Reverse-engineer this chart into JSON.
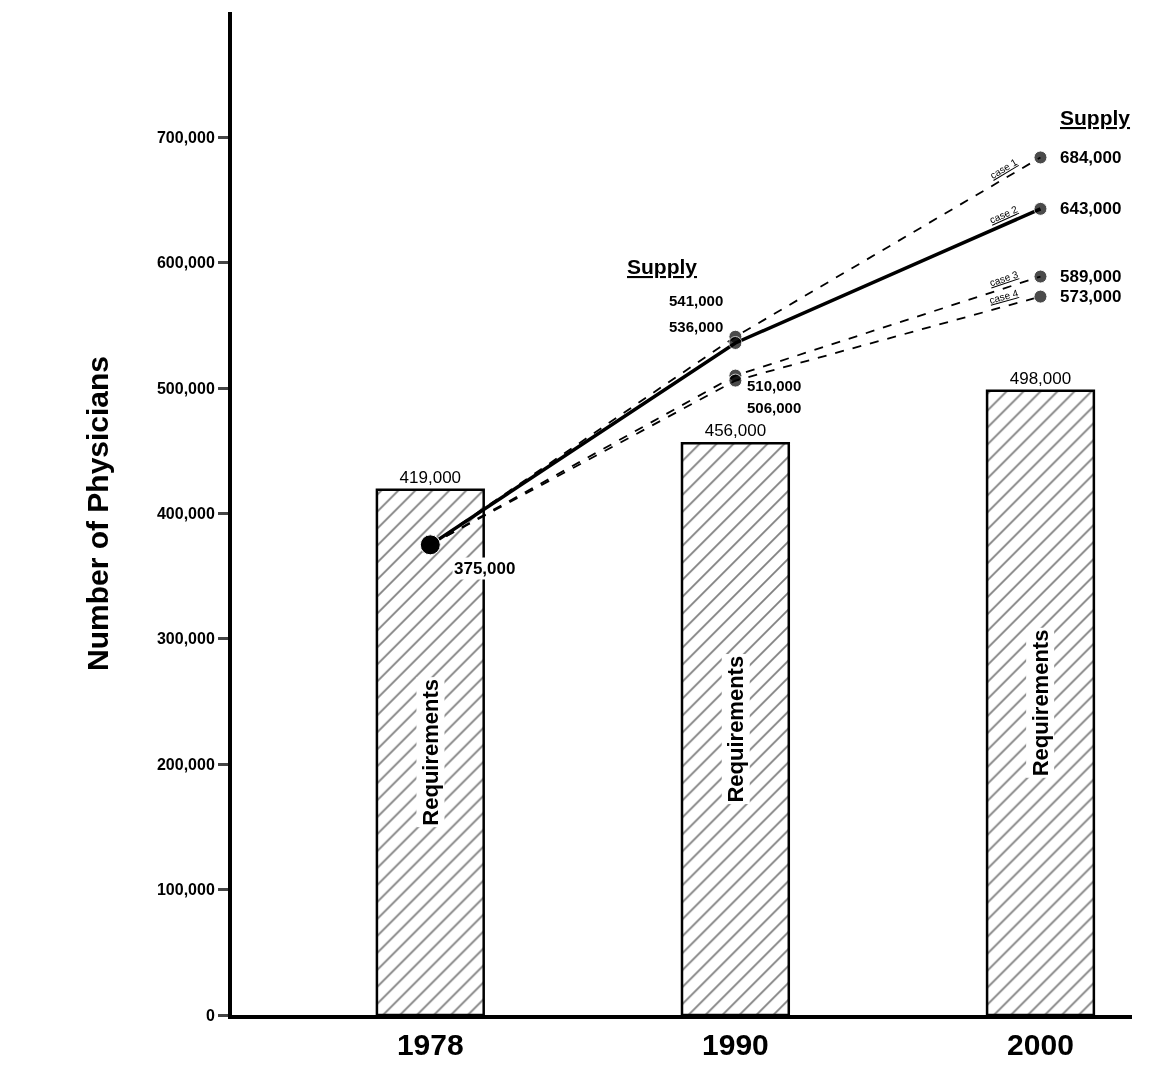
{
  "chart_data": {
    "type": "bar",
    "ylabel": "Number of Physicians",
    "categories": [
      "1978",
      "1990",
      "2000"
    ],
    "series": [
      {
        "name": "Requirements",
        "color": "#000000",
        "values": [
          419000,
          456000,
          498000
        ],
        "value_labels": [
          "419,000",
          "456,000",
          "498,000"
        ]
      },
      {
        "name": "case 1",
        "type": "line",
        "color": "#000000",
        "line_style": "dashed",
        "values": [
          375000,
          541000,
          684000
        ],
        "value_labels": [
          null,
          "541,000",
          "684,000"
        ]
      },
      {
        "name": "case 2",
        "type": "line",
        "color": "#000000",
        "line_style": "solid",
        "values": [
          375000,
          536000,
          643000
        ],
        "value_labels": [
          "375,000",
          "536,000",
          "643,000"
        ]
      },
      {
        "name": "case 3",
        "type": "line",
        "color": "#000000",
        "line_style": "dashed",
        "values": [
          375000,
          510000,
          589000
        ],
        "value_labels": [
          null,
          "510,000",
          "589,000"
        ]
      },
      {
        "name": "case 4",
        "type": "line",
        "color": "#000000",
        "line_style": "dashed",
        "values": [
          375000,
          506000,
          573000
        ],
        "value_labels": [
          null,
          "506,000",
          "573,000"
        ]
      }
    ],
    "annotations": [
      "Supply",
      "Supply"
    ],
    "marker": "circle",
    "ylim": [
      0,
      800000
    ],
    "yticks": [
      0,
      {
        "value": 100000,
        "label": "100,000"
      },
      {
        "value": 200000,
        "label": "200,000"
      },
      {
        "value": 300000,
        "label": "300,000"
      },
      {
        "value": 400000,
        "label": "400,000"
      },
      {
        "value": 500000,
        "label": "500,000"
      },
      {
        "value": 600000,
        "label": "600,000"
      },
      {
        "value": 700000,
        "label": "700,000"
      }
    ],
    "legend": false
  }
}
